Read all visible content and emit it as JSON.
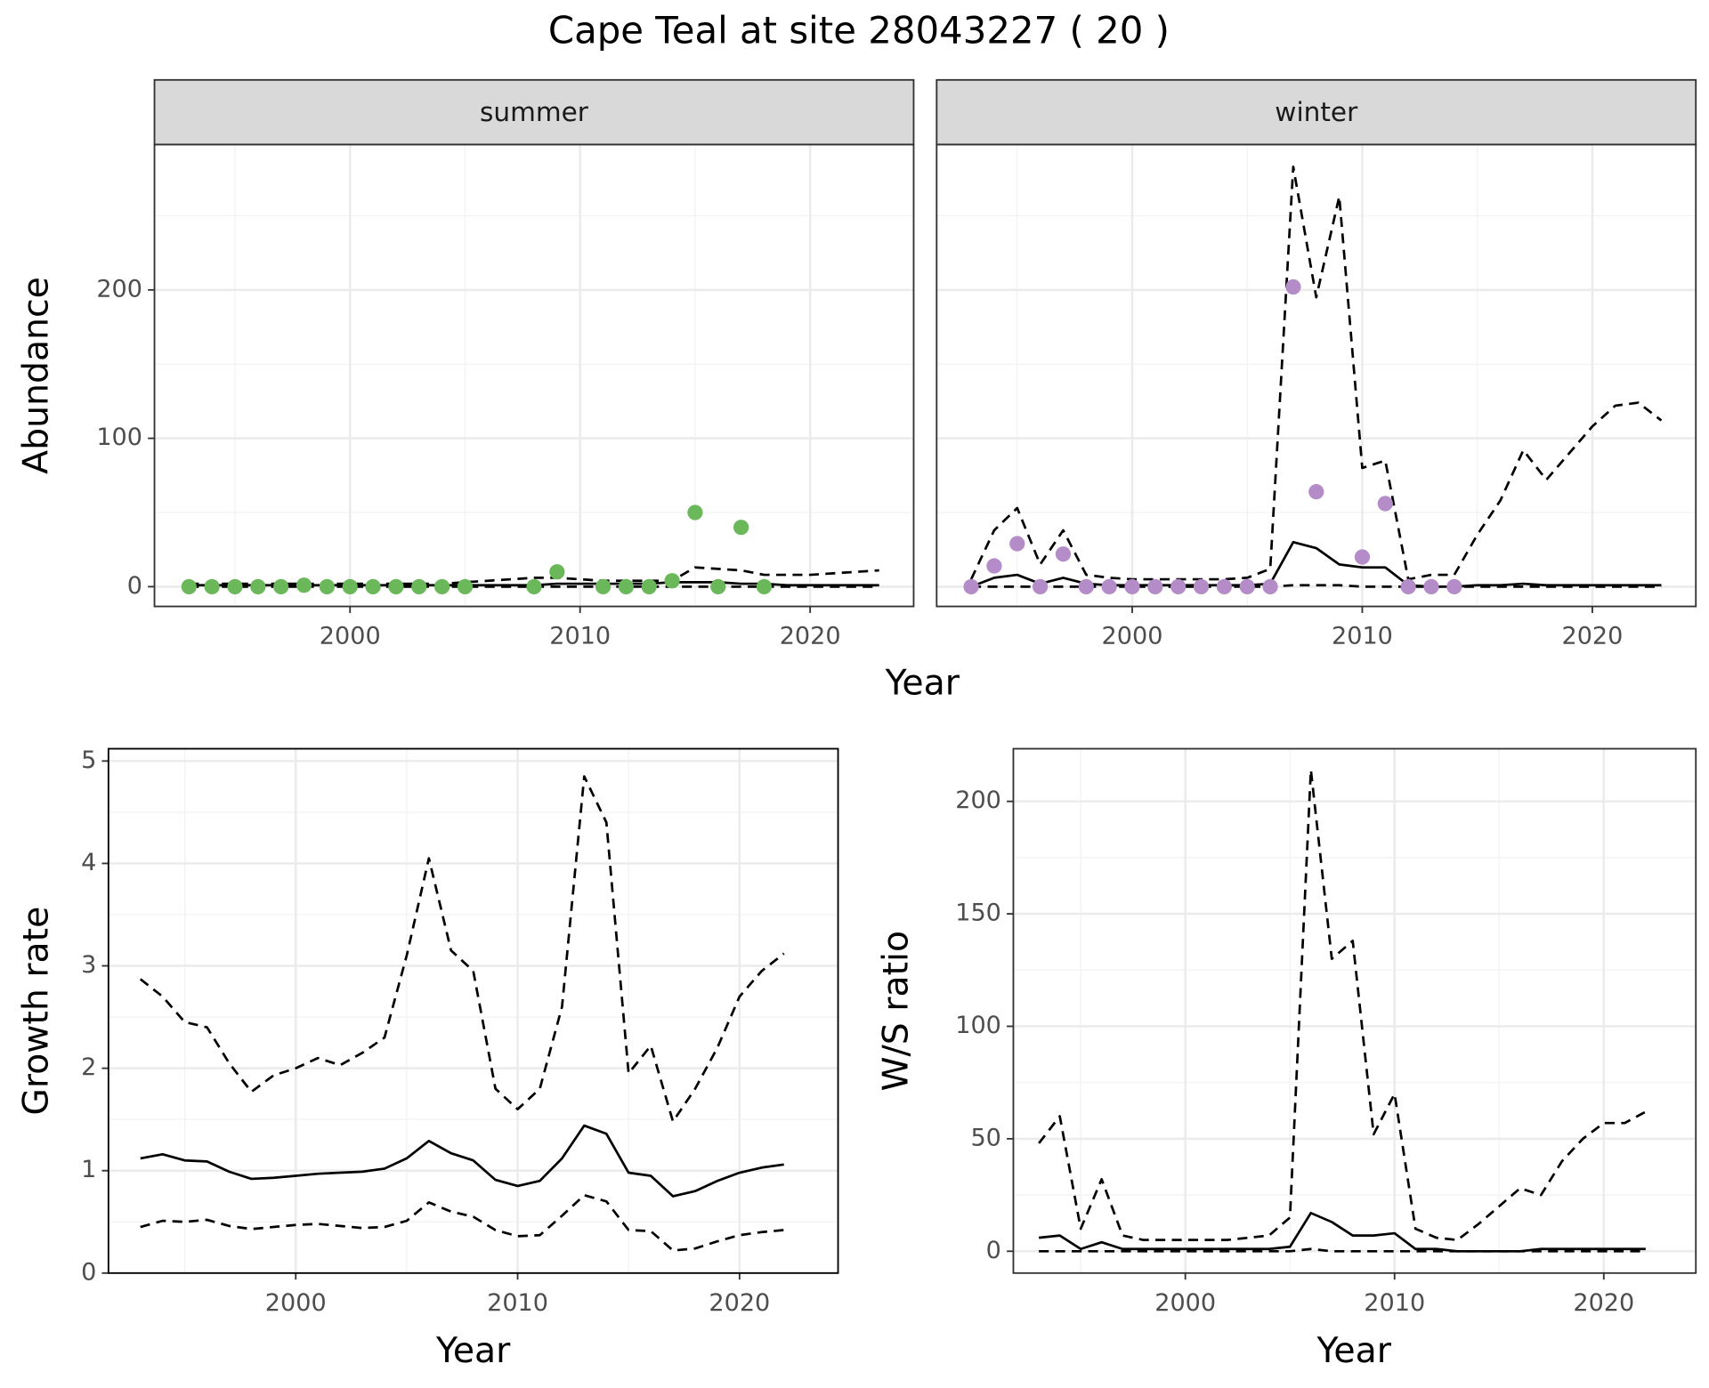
{
  "title": "Cape Teal at site 28043227 ( 20 )",
  "chart_data": [
    {
      "type": "line",
      "strip": "summer",
      "ylabel": "Abundance",
      "xlabel": "Year",
      "x": [
        1993,
        1994,
        1995,
        1996,
        1997,
        1998,
        1999,
        2000,
        2001,
        2002,
        2003,
        2004,
        2005,
        2006,
        2007,
        2008,
        2009,
        2010,
        2011,
        2012,
        2013,
        2014,
        2015,
        2016,
        2017,
        2018,
        2019,
        2020,
        2021,
        2022,
        2023
      ],
      "series": [
        {
          "color": "#000000",
          "dash": false,
          "values": [
            1,
            1,
            1,
            1,
            1,
            1,
            1,
            1,
            1,
            1,
            1,
            1,
            1,
            1,
            1,
            1,
            2,
            2,
            2,
            2,
            2,
            3,
            3,
            3,
            2,
            2,
            1,
            1,
            1,
            1,
            1
          ]
        },
        {
          "color": "#000000",
          "dash": true,
          "values": [
            2,
            2,
            2,
            2,
            2,
            2,
            2,
            2,
            2,
            2,
            2,
            2,
            3,
            4,
            5,
            6,
            6,
            5,
            4,
            4,
            4,
            4,
            13,
            12,
            11,
            8,
            8,
            8,
            9,
            10,
            11
          ]
        },
        {
          "color": "#000000",
          "dash": true,
          "values": [
            0,
            0,
            0,
            0,
            0,
            0,
            0,
            0,
            0,
            0,
            0,
            0,
            0,
            0,
            0,
            0,
            0,
            0,
            0,
            0,
            0,
            0,
            0,
            0,
            0,
            0,
            0,
            0,
            0,
            0,
            0
          ]
        }
      ],
      "points": {
        "color": "#6ab85a",
        "x": [
          1993,
          1994,
          1995,
          1996,
          1997,
          1998,
          1999,
          2000,
          2001,
          2002,
          2003,
          2004,
          2005,
          2008,
          2009,
          2011,
          2012,
          2013,
          2014,
          2015,
          2016,
          2017,
          2018
        ],
        "values": [
          0,
          0,
          0,
          0,
          0,
          1,
          0,
          0,
          0,
          0,
          0,
          0,
          0,
          0,
          10,
          0,
          0,
          0,
          4,
          50,
          0,
          40,
          0
        ]
      },
      "xlim": [
        1991.5,
        2024.5
      ],
      "ylim": [
        -13.3,
        298
      ],
      "xticks": [
        2000,
        2010,
        2020
      ],
      "yticks": [
        0,
        100,
        200
      ],
      "xminor": [
        1995,
        2005,
        2015
      ],
      "yminor": [
        50,
        150,
        250
      ],
      "grid": true
    },
    {
      "type": "line",
      "strip": "winter",
      "x": [
        1993,
        1994,
        1995,
        1996,
        1997,
        1998,
        1999,
        2000,
        2001,
        2002,
        2003,
        2004,
        2005,
        2006,
        2007,
        2008,
        2009,
        2010,
        2011,
        2012,
        2013,
        2014,
        2015,
        2016,
        2017,
        2018,
        2019,
        2020,
        2021,
        2022,
        2023
      ],
      "series": [
        {
          "color": "#000000",
          "dash": false,
          "values": [
            0,
            6,
            8,
            2,
            6,
            2,
            1,
            1,
            1,
            1,
            1,
            1,
            1,
            2,
            30,
            26,
            15,
            13,
            13,
            1,
            0,
            0,
            1,
            1,
            2,
            1,
            1,
            1,
            1,
            1,
            1
          ]
        },
        {
          "color": "#000000",
          "dash": true,
          "values": [
            5,
            38,
            53,
            15,
            38,
            8,
            6,
            5,
            5,
            5,
            5,
            5,
            6,
            12,
            283,
            195,
            263,
            80,
            85,
            5,
            8,
            8,
            35,
            58,
            92,
            72,
            90,
            108,
            122,
            124,
            112
          ]
        },
        {
          "color": "#000000",
          "dash": true,
          "values": [
            0,
            0,
            0,
            0,
            0,
            0,
            0,
            0,
            0,
            0,
            0,
            0,
            0,
            0,
            1,
            1,
            1,
            0,
            0,
            0,
            0,
            0,
            0,
            0,
            0,
            0,
            0,
            0,
            0,
            0,
            0
          ]
        }
      ],
      "points": {
        "color": "#b48cc8",
        "x": [
          1993,
          1994,
          1995,
          1996,
          1997,
          1998,
          1999,
          2000,
          2001,
          2002,
          2003,
          2004,
          2005,
          2006,
          2007,
          2008,
          2010,
          2011,
          2012,
          2013,
          2014
        ],
        "values": [
          0,
          14,
          29,
          0,
          22,
          0,
          0,
          0,
          0,
          0,
          0,
          0,
          0,
          0,
          202,
          64,
          20,
          56,
          0,
          0,
          0
        ]
      },
      "xlim": [
        1991.5,
        2024.5
      ],
      "ylim": [
        -13.3,
        298
      ],
      "xticks": [
        2000,
        2010,
        2020
      ],
      "xminor": [
        1995,
        2005,
        2015
      ],
      "yminor": [
        50,
        150,
        250
      ],
      "yticks_hidden": [
        0,
        100,
        200
      ],
      "grid": true
    },
    {
      "type": "line",
      "ylabel": "Growth rate",
      "xlabel": "Year",
      "x": [
        1993,
        1994,
        1995,
        1996,
        1997,
        1998,
        1999,
        2000,
        2001,
        2002,
        2003,
        2004,
        2005,
        2006,
        2007,
        2008,
        2009,
        2010,
        2011,
        2012,
        2013,
        2014,
        2015,
        2016,
        2017,
        2018,
        2019,
        2020,
        2021,
        2022
      ],
      "series": [
        {
          "color": "#000000",
          "dash": false,
          "values": [
            1.12,
            1.16,
            1.1,
            1.09,
            0.99,
            0.92,
            0.93,
            0.95,
            0.97,
            0.98,
            0.99,
            1.02,
            1.12,
            1.29,
            1.17,
            1.1,
            0.91,
            0.85,
            0.9,
            1.12,
            1.44,
            1.36,
            0.98,
            0.95,
            0.75,
            0.8,
            0.9,
            0.98,
            1.03,
            1.06
          ]
        },
        {
          "color": "#000000",
          "dash": true,
          "values": [
            2.87,
            2.7,
            2.45,
            2.4,
            2.05,
            1.77,
            1.93,
            2.0,
            2.1,
            2.03,
            2.15,
            2.3,
            3.1,
            4.05,
            3.15,
            2.95,
            1.8,
            1.6,
            1.8,
            2.6,
            4.85,
            4.4,
            1.95,
            2.22,
            1.48,
            1.8,
            2.2,
            2.7,
            2.95,
            3.12
          ]
        },
        {
          "color": "#000000",
          "dash": true,
          "values": [
            0.45,
            0.51,
            0.5,
            0.52,
            0.46,
            0.43,
            0.45,
            0.47,
            0.48,
            0.46,
            0.44,
            0.45,
            0.51,
            0.69,
            0.6,
            0.55,
            0.42,
            0.36,
            0.37,
            0.56,
            0.76,
            0.7,
            0.42,
            0.41,
            0.22,
            0.24,
            0.31,
            0.37,
            0.4,
            0.42
          ]
        }
      ],
      "xlim": [
        1991.56,
        2024.44
      ],
      "ylim": [
        0,
        5.12
      ],
      "xticks": [
        2000,
        2010,
        2020
      ],
      "yticks": [
        0,
        1,
        2,
        3,
        4,
        5
      ],
      "xminor": [
        1995,
        2005,
        2015
      ],
      "yminor": [
        0.5,
        1.5,
        2.5,
        3.5,
        4.5
      ],
      "grid": true
    },
    {
      "type": "line",
      "ylabel": "W/S ratio",
      "xlabel": "Year",
      "x": [
        1993,
        1994,
        1995,
        1996,
        1997,
        1998,
        1999,
        2000,
        2001,
        2002,
        2003,
        2004,
        2005,
        2006,
        2007,
        2008,
        2009,
        2010,
        2011,
        2012,
        2013,
        2014,
        2015,
        2016,
        2017,
        2018,
        2019,
        2020,
        2021,
        2022
      ],
      "series": [
        {
          "color": "#000000",
          "dash": false,
          "values": [
            6,
            7,
            1,
            4,
            1,
            1,
            1,
            1,
            1,
            1,
            1,
            1,
            2,
            17,
            13,
            7,
            7,
            8,
            1,
            1,
            0,
            0,
            0,
            0,
            1,
            1,
            1,
            1,
            1,
            1
          ]
        },
        {
          "color": "#000000",
          "dash": true,
          "values": [
            48,
            60,
            10,
            32,
            7,
            5,
            5,
            5,
            5,
            5,
            6,
            7,
            15,
            214,
            130,
            138,
            52,
            70,
            10,
            6,
            5,
            12,
            20,
            28,
            25,
            40,
            50,
            57,
            57,
            62
          ]
        },
        {
          "color": "#000000",
          "dash": true,
          "values": [
            0,
            0,
            0,
            0,
            0,
            0,
            0,
            0,
            0,
            0,
            0,
            0,
            0,
            1,
            0,
            0,
            0,
            0,
            0,
            0,
            0,
            0,
            0,
            0,
            0,
            0,
            0,
            0,
            0,
            0
          ]
        }
      ],
      "xlim": [
        1991.78,
        2024.4
      ],
      "ylim": [
        -9.7,
        223.4
      ],
      "xticks": [
        2000,
        2010,
        2020
      ],
      "yticks": [
        0,
        50,
        100,
        150,
        200
      ],
      "xminor": [
        1995,
        2005,
        2015
      ],
      "yminor": [
        25,
        75,
        125,
        175
      ],
      "grid": true
    }
  ]
}
